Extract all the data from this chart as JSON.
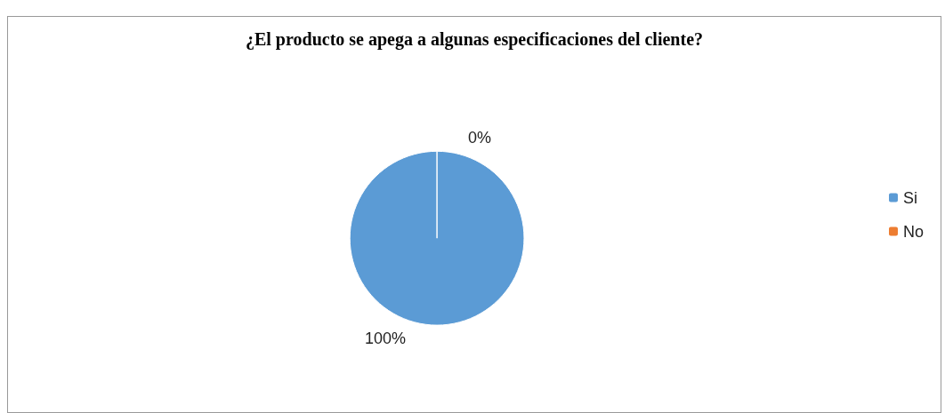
{
  "chart_data": {
    "type": "pie",
    "title": "¿El producto se apega a algunas especificaciones del cliente?",
    "categories": [
      "Si",
      "No"
    ],
    "values": [
      100,
      0
    ],
    "colors": [
      "#5b9bd5",
      "#ed7d31"
    ],
    "value_labels": [
      "100%",
      "0%"
    ],
    "legend": "right"
  }
}
